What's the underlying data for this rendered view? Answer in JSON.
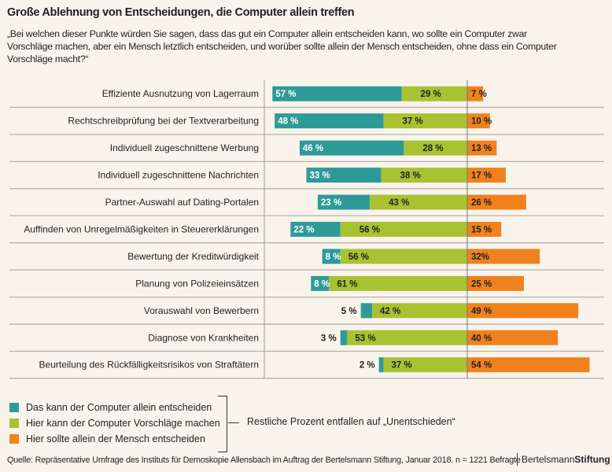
{
  "title": "Große Ablehnung von Entscheidungen, die Computer allein treffen",
  "subtitle": "„Bei welchen dieser Punkte würden Sie sagen, dass das gut ein Computer allein entscheiden kann, wo sollte ein Computer zwar Vorschläge machen, aber ein Mensch letztlich entscheiden, und worüber sollte allein der Mensch entscheiden, ohne dass ein Computer Vorschläge macht?“",
  "chart_data": {
    "type": "bar",
    "orientation": "horizontal-diverging-stacked",
    "unit": "%",
    "categories": [
      "Effiziente Ausnutzung von Lagerraum",
      "Rechtschreibprüfung bei der Textverarbeitung",
      "Individuell zugeschnittene Werbung",
      "Individuell zugeschnittene Nachrichten",
      "Partner-Auswahl auf Dating-Portalen",
      "Auffinden von Unregelmäßigkeiten in Steuererklärungen",
      "Bewertung der Kreditwürdigkeit",
      "Planung von Polizeieinsätzen",
      "Vorauswahl von Bewerbern",
      "Diagnose von Krankheiten",
      "Beurteilung des Rückfälligkeitsrisikos von Straftätern"
    ],
    "series": [
      {
        "name": "Das kann der Computer allein entscheiden",
        "color": "#2e9a98",
        "values": [
          57,
          48,
          46,
          33,
          23,
          22,
          8,
          8,
          5,
          3,
          2
        ],
        "labels": [
          "57 %",
          "48 %",
          "46 %",
          "33 %",
          "23 %",
          "22 %",
          "8 %",
          "8 %",
          "5 %",
          "3 %",
          "2 %"
        ]
      },
      {
        "name": "Hier kann der Computer Vorschläge machen",
        "color": "#a8c232",
        "values": [
          29,
          37,
          28,
          38,
          43,
          56,
          56,
          61,
          42,
          53,
          37
        ],
        "labels": [
          "29 %",
          "37 %",
          "28 %",
          "38 %",
          "43 %",
          "56 %",
          "56 %",
          "61 %",
          "42 %",
          "53 %",
          "37 %"
        ]
      },
      {
        "name": "Hier sollte allein der Mensch entscheiden",
        "color": "#f0821e",
        "values": [
          7,
          10,
          13,
          17,
          26,
          15,
          32,
          25,
          49,
          40,
          54
        ],
        "labels": [
          "7 %",
          "10 %",
          "13 %",
          "17 %",
          "26 %",
          "15 %",
          "32%",
          "25 %",
          "49 %",
          "40 %",
          "54 %"
        ]
      }
    ],
    "legend_position": "bottom-left"
  },
  "legend_note": "Restliche Prozent entfallen auf „Unentschieden“",
  "source": "Quelle: Repräsentative Umfrage des Instituts für Demoskopie Allensbach im Auftrag der Bertelsmann Stiftung, Januar 2018. n = 1221 Befragte",
  "brand": {
    "part1": "Bertelsmann",
    "part2": "Stiftung"
  }
}
